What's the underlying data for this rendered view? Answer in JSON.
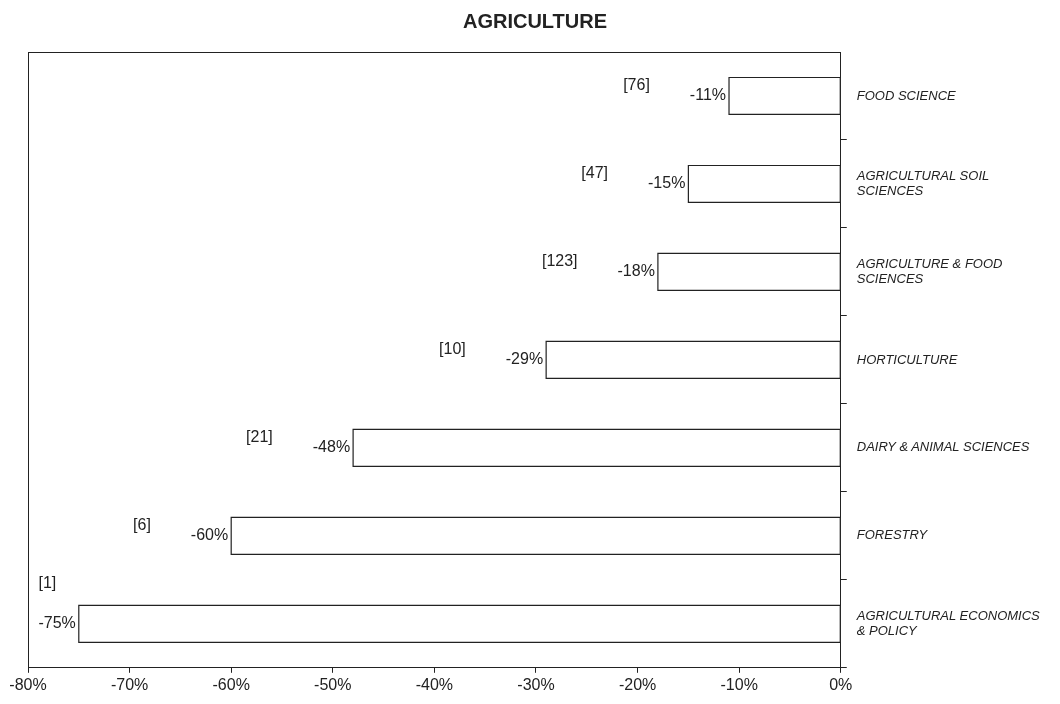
{
  "chart_data": {
    "type": "bar",
    "orientation": "horizontal",
    "title": "AGRICULTURE",
    "categories": [
      "FOOD SCIENCE",
      "AGRICULTURAL SOIL SCIENCES",
      "AGRICULTURE & FOOD SCIENCES",
      "HORTICULTURE",
      "DAIRY & ANIMAL SCIENCES",
      "FORESTRY",
      "AGRICULTURAL ECONOMICS & POLICY"
    ],
    "values": [
      -11,
      -15,
      -18,
      -29,
      -48,
      -60,
      -75
    ],
    "value_labels": [
      "-11%",
      "-15%",
      "-18%",
      "-29%",
      "-48%",
      "-60%",
      "-75%"
    ],
    "color": "#ffffff",
    "xlim": [
      -80,
      0
    ],
    "xticks": [
      {
        "value": -80,
        "label": "-80%"
      },
      {
        "value": -70,
        "label": "-70%"
      },
      {
        "value": -60,
        "label": "-60%"
      },
      {
        "value": -50,
        "label": "-50%"
      },
      {
        "value": -40,
        "label": "-40%"
      },
      {
        "value": -30,
        "label": "-30%"
      },
      {
        "value": -20,
        "label": "-20%"
      },
      {
        "value": -10,
        "label": "-10%"
      },
      {
        "value": 0,
        "label": "0%"
      }
    ],
    "annotations": [
      "[76]",
      "[47]",
      "[123]",
      "[10]",
      "[21]",
      "[6]",
      "[1]"
    ],
    "grid": false,
    "legend": false
  }
}
